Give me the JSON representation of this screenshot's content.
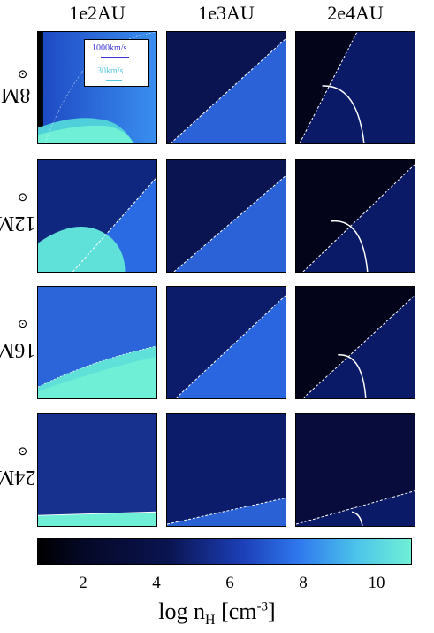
{
  "columns": [
    "1e2AU",
    "1e3AU",
    "2e4AU"
  ],
  "rows": [
    "8M",
    "12M",
    "16M",
    "24M"
  ],
  "sun_symbol": "⊙",
  "legend": {
    "arrow1": "1000km/s",
    "arrow2": "30km/s"
  },
  "colorbar": {
    "ticks": [
      "2",
      "4",
      "6",
      "8",
      "10"
    ],
    "label_main": "log n",
    "label_sub": "H",
    "label_open": " [cm",
    "label_sup": "-3",
    "label_close": "]",
    "range": [
      0.8,
      11.0
    ],
    "colors": [
      "#000000",
      "#050826",
      "#0a1450",
      "#1c3fb8",
      "#2f78ee",
      "#4bc2ea",
      "#6ff0d6"
    ]
  }
}
